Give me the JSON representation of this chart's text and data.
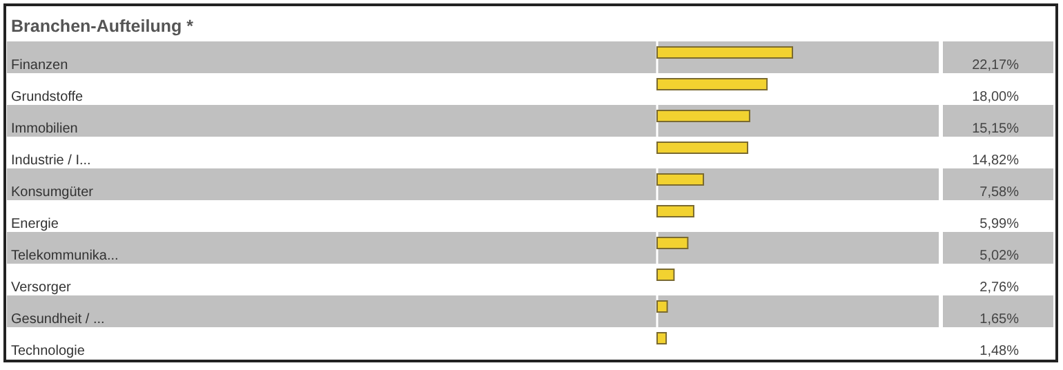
{
  "chart_data": {
    "type": "bar",
    "orientation": "horizontal",
    "title": "Branchen-Aufteilung *",
    "categories": [
      "Finanzen",
      "Grundstoffe",
      "Immobilien",
      "Industrie / I...",
      "Konsumgüter",
      "Energie",
      "Telekommunika...",
      "Versorger",
      "Gesundheit / ...",
      "Technologie"
    ],
    "values": [
      22.17,
      18.0,
      15.15,
      14.82,
      7.58,
      5.99,
      5.02,
      2.76,
      1.65,
      1.48
    ],
    "value_labels": [
      "22,17%",
      "18,00%",
      "15,15%",
      "14,82%",
      "7,58%",
      "5,99%",
      "5,02%",
      "2,76%",
      "1,65%",
      "1,48%"
    ],
    "color": "#f2d230"
  }
}
